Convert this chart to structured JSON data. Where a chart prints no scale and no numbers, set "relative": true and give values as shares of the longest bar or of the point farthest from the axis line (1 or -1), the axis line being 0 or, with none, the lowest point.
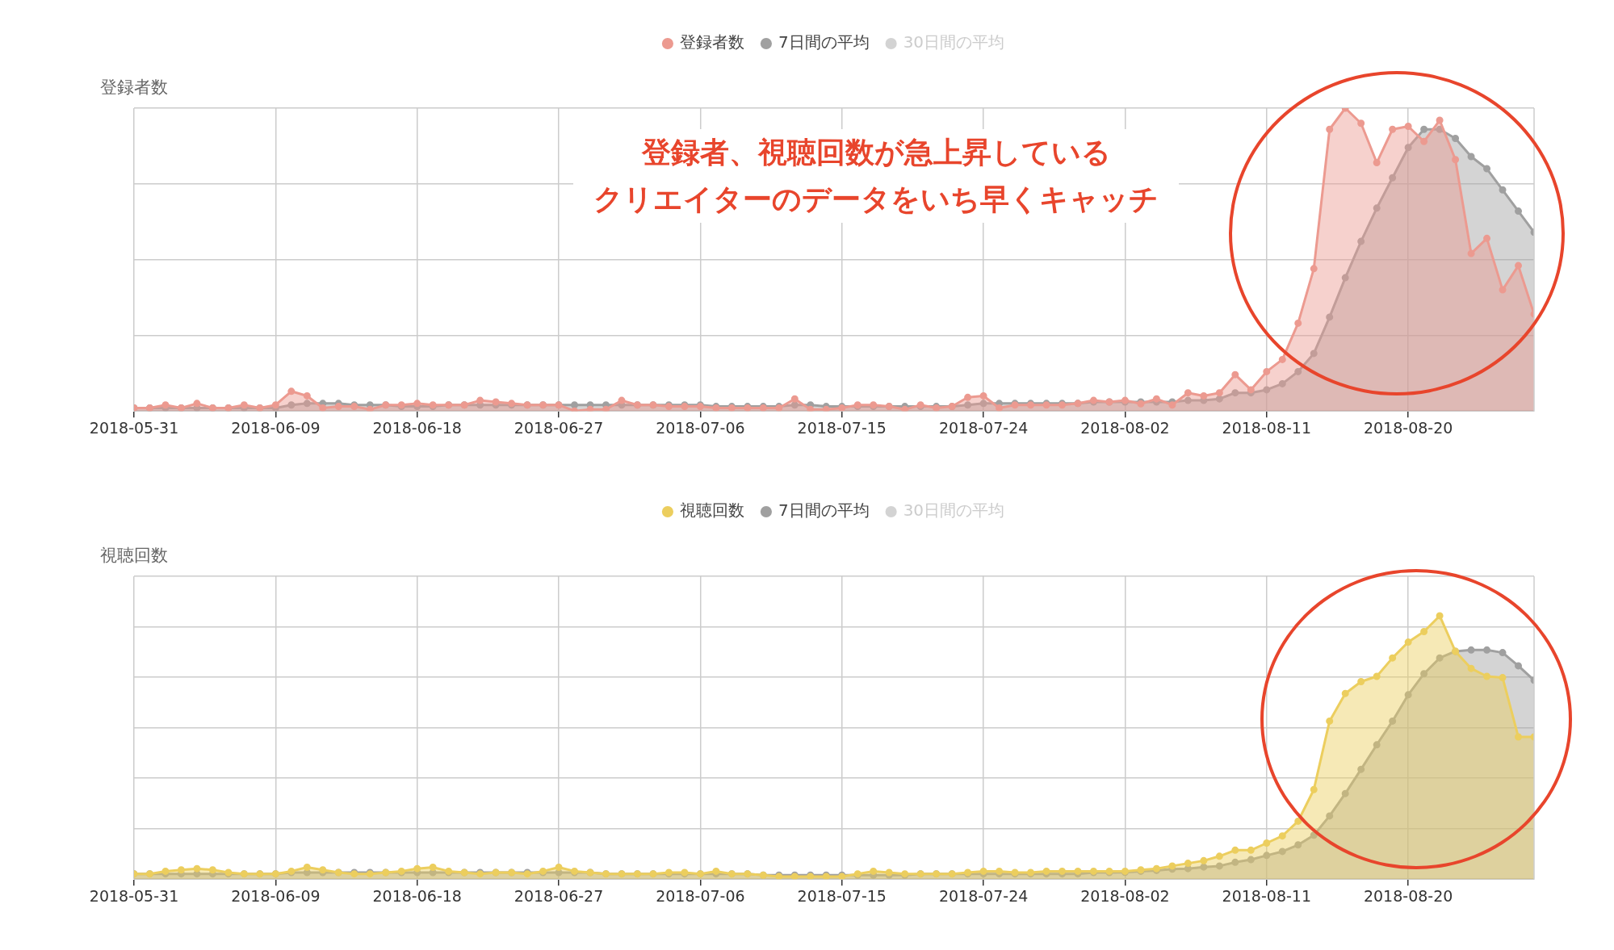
{
  "chart_data": [
    {
      "type": "area",
      "ylabel": "登録者数",
      "relative": true,
      "grid": true,
      "legend": "top",
      "marker": "circle",
      "line_style": "solid",
      "annotations": [
        "登録者、視聴回数が急上昇している",
        "クリエイターのデータをいち早くキャッチ"
      ],
      "xlim": [
        "2018-05-31",
        "2018-08-28"
      ],
      "xticks": [
        "2018-05-31",
        "2018-06-09",
        "2018-06-18",
        "2018-06-27",
        "2018-07-06",
        "2018-07-15",
        "2018-07-24",
        "2018-08-02",
        "2018-08-11",
        "2018-08-20"
      ],
      "x": [
        "2018-05-31",
        "2018-06-01",
        "2018-06-02",
        "2018-06-03",
        "2018-06-04",
        "2018-06-05",
        "2018-06-06",
        "2018-06-07",
        "2018-06-08",
        "2018-06-09",
        "2018-06-10",
        "2018-06-11",
        "2018-06-12",
        "2018-06-13",
        "2018-06-14",
        "2018-06-15",
        "2018-06-16",
        "2018-06-17",
        "2018-06-18",
        "2018-06-19",
        "2018-06-20",
        "2018-06-21",
        "2018-06-22",
        "2018-06-23",
        "2018-06-24",
        "2018-06-25",
        "2018-06-26",
        "2018-06-27",
        "2018-06-28",
        "2018-06-29",
        "2018-06-30",
        "2018-07-01",
        "2018-07-02",
        "2018-07-03",
        "2018-07-04",
        "2018-07-05",
        "2018-07-06",
        "2018-07-07",
        "2018-07-08",
        "2018-07-09",
        "2018-07-10",
        "2018-07-11",
        "2018-07-12",
        "2018-07-13",
        "2018-07-14",
        "2018-07-15",
        "2018-07-16",
        "2018-07-17",
        "2018-07-18",
        "2018-07-19",
        "2018-07-20",
        "2018-07-21",
        "2018-07-22",
        "2018-07-23",
        "2018-07-24",
        "2018-07-25",
        "2018-07-26",
        "2018-07-27",
        "2018-07-28",
        "2018-07-29",
        "2018-07-30",
        "2018-07-31",
        "2018-08-01",
        "2018-08-02",
        "2018-08-03",
        "2018-08-04",
        "2018-08-05",
        "2018-08-06",
        "2018-08-07",
        "2018-08-08",
        "2018-08-09",
        "2018-08-10",
        "2018-08-11",
        "2018-08-12",
        "2018-08-13",
        "2018-08-14",
        "2018-08-15",
        "2018-08-16",
        "2018-08-17",
        "2018-08-18",
        "2018-08-19",
        "2018-08-20",
        "2018-08-21",
        "2018-08-22",
        "2018-08-23",
        "2018-08-24",
        "2018-08-25",
        "2018-08-26",
        "2018-08-27",
        "2018-08-28"
      ],
      "series": [
        {
          "name": "登録者数",
          "color": "#ec9a90",
          "values": [
            0.01,
            0.01,
            0.02,
            0.01,
            0.025,
            0.01,
            0.01,
            0.02,
            0.01,
            0.02,
            0.065,
            0.05,
            0.01,
            0.015,
            0.015,
            0.005,
            0.02,
            0.02,
            0.025,
            0.02,
            0.02,
            0.02,
            0.035,
            0.03,
            0.025,
            0.02,
            0.02,
            0.02,
            0,
            0.005,
            0.005,
            0.035,
            0.02,
            0.02,
            0.015,
            0.015,
            0.015,
            0.01,
            0.01,
            0.01,
            0.01,
            0.01,
            0.04,
            0.005,
            0.005,
            0.01,
            0.02,
            0.02,
            0.015,
            0.005,
            0.02,
            0.01,
            0.015,
            0.045,
            0.05,
            0.01,
            0.02,
            0.02,
            0.02,
            0.02,
            0.025,
            0.035,
            0.03,
            0.035,
            0.024,
            0.04,
            0.02,
            0.06,
            0.05,
            0.06,
            0.12,
            0.07,
            0.13,
            0.17,
            0.29,
            0.47,
            0.93,
            1,
            0.95,
            0.82,
            0.93,
            0.94,
            0.89,
            0.96,
            0.83,
            0.52,
            0.57,
            0.4,
            0.48,
            0.32
          ]
        },
        {
          "name": "7日間の平均",
          "color": "#a0a0a0",
          "values": [
            0.01,
            0.01,
            0.01,
            0.01,
            0.01,
            0.01,
            0.01,
            0.01,
            0.01,
            0.01,
            0.02,
            0.025,
            0.025,
            0.025,
            0.02,
            0.02,
            0.02,
            0.015,
            0.015,
            0.015,
            0.02,
            0.02,
            0.02,
            0.02,
            0.02,
            0.02,
            0.02,
            0.02,
            0.02,
            0.02,
            0.02,
            0.02,
            0.02,
            0.02,
            0.02,
            0.02,
            0.02,
            0.015,
            0.015,
            0.015,
            0.015,
            0.015,
            0.02,
            0.02,
            0.015,
            0.015,
            0.015,
            0.015,
            0.015,
            0.015,
            0.015,
            0.015,
            0.015,
            0.02,
            0.025,
            0.025,
            0.025,
            0.025,
            0.025,
            0.025,
            0.025,
            0.03,
            0.03,
            0.03,
            0.03,
            0.03,
            0.03,
            0.035,
            0.035,
            0.04,
            0.06,
            0.06,
            0.07,
            0.09,
            0.13,
            0.19,
            0.31,
            0.44,
            0.56,
            0.67,
            0.77,
            0.87,
            0.93,
            0.93,
            0.9,
            0.84,
            0.8,
            0.73,
            0.66,
            0.59
          ]
        },
        {
          "name": "30日間の平均",
          "color": "#d3d3d3",
          "values": [
            null,
            null,
            null,
            null,
            null,
            null,
            null,
            null,
            null,
            null,
            null,
            null,
            null,
            null,
            null,
            null,
            null,
            null,
            null,
            null,
            null,
            null,
            null,
            null,
            null,
            null,
            null,
            null,
            null,
            null,
            null,
            null,
            null,
            null,
            null,
            null,
            null,
            null,
            null,
            null,
            null,
            null,
            null,
            null,
            null,
            null,
            null,
            null,
            null,
            null,
            null,
            null,
            null,
            null,
            null,
            null,
            null,
            null,
            null,
            null,
            null,
            null,
            null,
            null,
            null,
            null,
            null,
            null,
            null,
            null,
            null,
            null,
            null,
            null,
            null,
            null,
            null,
            null,
            null,
            null,
            null,
            null,
            null,
            null,
            null,
            null,
            null,
            null,
            null,
            null
          ]
        }
      ]
    },
    {
      "type": "area",
      "ylabel": "視聴回数",
      "relative": true,
      "grid": true,
      "legend": "top",
      "marker": "circle",
      "line_style": "solid",
      "xlim": [
        "2018-05-31",
        "2018-08-28"
      ],
      "xticks": [
        "2018-05-31",
        "2018-06-09",
        "2018-06-18",
        "2018-06-27",
        "2018-07-06",
        "2018-07-15",
        "2018-07-24",
        "2018-08-02",
        "2018-08-11",
        "2018-08-20"
      ],
      "x": [
        "2018-05-31",
        "2018-06-01",
        "2018-06-02",
        "2018-06-03",
        "2018-06-04",
        "2018-06-05",
        "2018-06-06",
        "2018-06-07",
        "2018-06-08",
        "2018-06-09",
        "2018-06-10",
        "2018-06-11",
        "2018-06-12",
        "2018-06-13",
        "2018-06-14",
        "2018-06-15",
        "2018-06-16",
        "2018-06-17",
        "2018-06-18",
        "2018-06-19",
        "2018-06-20",
        "2018-06-21",
        "2018-06-22",
        "2018-06-23",
        "2018-06-24",
        "2018-06-25",
        "2018-06-26",
        "2018-06-27",
        "2018-06-28",
        "2018-06-29",
        "2018-06-30",
        "2018-07-01",
        "2018-07-02",
        "2018-07-03",
        "2018-07-04",
        "2018-07-05",
        "2018-07-06",
        "2018-07-07",
        "2018-07-08",
        "2018-07-09",
        "2018-07-10",
        "2018-07-11",
        "2018-07-12",
        "2018-07-13",
        "2018-07-14",
        "2018-07-15",
        "2018-07-16",
        "2018-07-17",
        "2018-07-18",
        "2018-07-19",
        "2018-07-20",
        "2018-07-21",
        "2018-07-22",
        "2018-07-23",
        "2018-07-24",
        "2018-07-25",
        "2018-07-26",
        "2018-07-27",
        "2018-07-28",
        "2018-07-29",
        "2018-07-30",
        "2018-07-31",
        "2018-08-01",
        "2018-08-02",
        "2018-08-03",
        "2018-08-04",
        "2018-08-05",
        "2018-08-06",
        "2018-08-07",
        "2018-08-08",
        "2018-08-09",
        "2018-08-10",
        "2018-08-11",
        "2018-08-12",
        "2018-08-13",
        "2018-08-14",
        "2018-08-15",
        "2018-08-16",
        "2018-08-17",
        "2018-08-18",
        "2018-08-19",
        "2018-08-20",
        "2018-08-21",
        "2018-08-22",
        "2018-08-23",
        "2018-08-24",
        "2018-08-25",
        "2018-08-26",
        "2018-08-27",
        "2018-08-28"
      ],
      "series": [
        {
          "name": "視聴回数",
          "color": "#ecce5e",
          "values": [
            0.02,
            0.02,
            0.03,
            0.035,
            0.04,
            0.035,
            0.025,
            0.02,
            0.02,
            0.02,
            0.03,
            0.045,
            0.035,
            0.025,
            0.02,
            0.02,
            0.025,
            0.03,
            0.04,
            0.045,
            0.03,
            0.025,
            0.02,
            0.025,
            0.025,
            0.02,
            0.03,
            0.045,
            0.03,
            0.025,
            0.02,
            0.02,
            0.02,
            0.02,
            0.025,
            0.025,
            0.02,
            0.03,
            0.02,
            0.02,
            0.015,
            0.01,
            0.01,
            0.01,
            0.01,
            0.01,
            0.02,
            0.03,
            0.025,
            0.02,
            0.02,
            0.02,
            0.02,
            0.025,
            0.03,
            0.03,
            0.025,
            0.025,
            0.03,
            0.03,
            0.03,
            0.03,
            0.03,
            0.03,
            0.035,
            0.04,
            0.05,
            0.06,
            0.07,
            0.087,
            0.11,
            0.11,
            0.137,
            0.164,
            0.22,
            0.34,
            0.6,
            0.705,
            0.75,
            0.77,
            0.84,
            0.9,
            0.94,
            1,
            0.865,
            0.8,
            0.77,
            0.765,
            0.54,
            0.54
          ]
        },
        {
          "name": "7日間の平均",
          "color": "#a0a0a0",
          "values": [
            0.02,
            0.02,
            0.02,
            0.02,
            0.02,
            0.02,
            0.02,
            0.02,
            0.02,
            0.02,
            0.025,
            0.025,
            0.025,
            0.025,
            0.025,
            0.025,
            0.025,
            0.025,
            0.025,
            0.025,
            0.025,
            0.025,
            0.025,
            0.025,
            0.025,
            0.025,
            0.025,
            0.025,
            0.025,
            0.025,
            0.02,
            0.02,
            0.02,
            0.02,
            0.02,
            0.02,
            0.02,
            0.02,
            0.02,
            0.02,
            0.015,
            0.015,
            0.015,
            0.015,
            0.015,
            0.015,
            0.015,
            0.015,
            0.015,
            0.015,
            0.02,
            0.02,
            0.02,
            0.02,
            0.02,
            0.02,
            0.02,
            0.02,
            0.02,
            0.02,
            0.02,
            0.025,
            0.025,
            0.026,
            0.03,
            0.033,
            0.038,
            0.04,
            0.046,
            0.05,
            0.064,
            0.074,
            0.09,
            0.105,
            0.13,
            0.167,
            0.24,
            0.325,
            0.417,
            0.51,
            0.6,
            0.7,
            0.78,
            0.84,
            0.865,
            0.87,
            0.87,
            0.86,
            0.81,
            0.755
          ]
        },
        {
          "name": "30日間の平均",
          "color": "#d3d3d3",
          "values": [
            null,
            null,
            null,
            null,
            null,
            null,
            null,
            null,
            null,
            null,
            null,
            null,
            null,
            null,
            null,
            null,
            null,
            null,
            null,
            null,
            null,
            null,
            null,
            null,
            null,
            null,
            null,
            null,
            null,
            null,
            null,
            null,
            null,
            null,
            null,
            null,
            null,
            null,
            null,
            null,
            null,
            null,
            null,
            null,
            null,
            null,
            null,
            null,
            null,
            null,
            null,
            null,
            null,
            null,
            null,
            null,
            null,
            null,
            null,
            null,
            null,
            null,
            null,
            null,
            null,
            null,
            null,
            null,
            null,
            null,
            null,
            null,
            null,
            null,
            null,
            null,
            null,
            null,
            null,
            null,
            null,
            null,
            null,
            null,
            null,
            null,
            null,
            null,
            null,
            null
          ]
        }
      ]
    }
  ]
}
